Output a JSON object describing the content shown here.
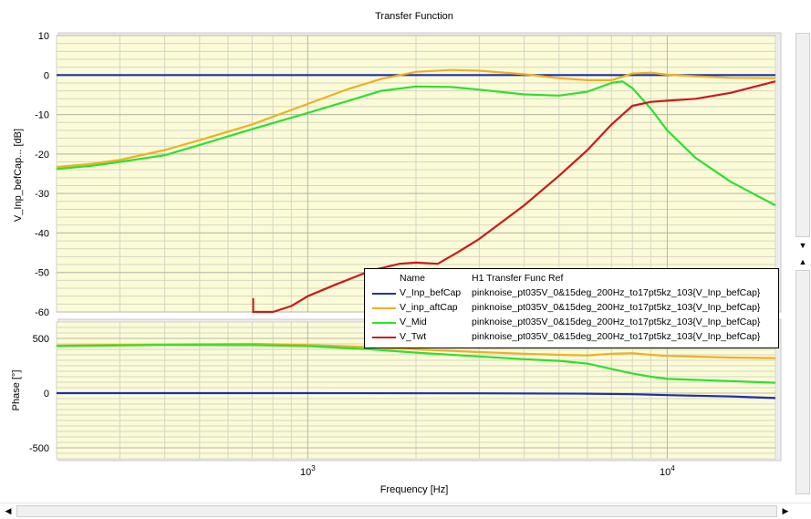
{
  "chart_data": [
    {
      "type": "line",
      "title": "Transfer Function",
      "xlabel": "",
      "ylabel": "V_Inp_befCap... [dB]",
      "xscale": "log",
      "xlim": [
        200,
        20000
      ],
      "ylim": [
        -60,
        10
      ],
      "yticks": [
        10,
        0,
        -10,
        -20,
        -30,
        -40,
        -50,
        -60
      ],
      "grid": true,
      "background": "#fbfbd8",
      "series": [
        {
          "name": "V_Inp_befCap",
          "color": "#1e2fb0",
          "x": [
            200,
            20000
          ],
          "y": [
            0,
            0
          ]
        },
        {
          "name": "V_inp_aftCap",
          "color": "#f0b020",
          "x": [
            200,
            250,
            300,
            400,
            500,
            700,
            1000,
            1300,
            1600,
            2000,
            2500,
            3000,
            4000,
            5000,
            6000,
            7000,
            8000,
            9000,
            10000,
            12000,
            15000,
            20000
          ],
          "y": [
            -23.3,
            -22.5,
            -21.5,
            -19,
            -16.5,
            -12.5,
            -7.3,
            -3.5,
            -1,
            0.8,
            1.3,
            1.1,
            0.2,
            -0.8,
            -1.3,
            -1.3,
            0.4,
            0.6,
            0.1,
            -0.3,
            -0.7,
            -0.8
          ]
        },
        {
          "name": "V_Mid",
          "color": "#2ee02e",
          "x": [
            200,
            250,
            300,
            400,
            500,
            700,
            1000,
            1300,
            1600,
            2000,
            2500,
            3000,
            4000,
            5000,
            6000,
            7000,
            7500,
            8000,
            9000,
            10000,
            12000,
            15000,
            20000
          ],
          "y": [
            -23.8,
            -23,
            -22,
            -20.3,
            -17.7,
            -13.7,
            -9.6,
            -6.5,
            -4,
            -2.9,
            -3,
            -3.7,
            -4.9,
            -5.2,
            -4.2,
            -2,
            -1.6,
            -3.3,
            -8.5,
            -14,
            -21,
            -27,
            -33
          ]
        },
        {
          "name": "V_Twt",
          "color": "#cc1a1a",
          "x": [
            700,
            750,
            800,
            900,
            1000,
            1200,
            1500,
            1800,
            2000,
            2300,
            2600,
            3000,
            4000,
            5000,
            6000,
            7000,
            8000,
            9000,
            10000,
            12000,
            15000,
            20000
          ],
          "y": [
            -61,
            -60.5,
            -60,
            -58.5,
            -56,
            -53,
            -49.5,
            -47.8,
            -47.5,
            -47.8,
            -45,
            -41.5,
            -33,
            -25.5,
            -19,
            -12.5,
            -7.8,
            -6.8,
            -6.5,
            -6,
            -4.5,
            -1.6
          ]
        }
      ],
      "legend": {
        "placement": "bottom-right",
        "name_header": "Name",
        "ref_header": "H1 Transfer Func Ref",
        "entries": [
          {
            "name": "V_Inp_befCap",
            "ref": "pinknoise_pt035V_0&15deg_200Hz_to17pt5kz_103{V_Inp_befCap}",
            "color": "#1e2fb0"
          },
          {
            "name": "V_inp_aftCap",
            "ref": "pinknoise_pt035V_0&15deg_200Hz_to17pt5kz_103{V_Inp_befCap}",
            "color": "#f0b020"
          },
          {
            "name": "V_Mid",
            "ref": "pinknoise_pt035V_0&15deg_200Hz_to17pt5kz_103{V_Inp_befCap}",
            "color": "#2ee02e"
          },
          {
            "name": "V_Twt",
            "ref": "pinknoise_pt035V_0&15deg_200Hz_to17pt5kz_103{V_Inp_befCap}",
            "color": "#cc1a1a"
          }
        ]
      }
    },
    {
      "type": "line",
      "title": "",
      "xlabel": "Frequency [Hz]",
      "ylabel": "Phase [°]",
      "xscale": "log",
      "xlim": [
        200,
        20000
      ],
      "ylim": [
        -600,
        650
      ],
      "yticks": [
        500,
        0,
        -500
      ],
      "xticks": [
        {
          "value": 1000,
          "base": "10",
          "exp": "3"
        },
        {
          "value": 10000,
          "base": "10",
          "exp": "4"
        }
      ],
      "grid": true,
      "background": "#fbfbd8",
      "series": [
        {
          "name": "V_Inp_befCap",
          "color": "#1e2fb0",
          "x": [
            200,
            1000,
            3000,
            6000,
            8000,
            10000,
            15000,
            20000
          ],
          "y": [
            0,
            0,
            -2,
            -5,
            -10,
            -18,
            -30,
            -45
          ]
        },
        {
          "name": "V_inp_aftCap",
          "color": "#f0b020",
          "x": [
            200,
            400,
            700,
            1000,
            1500,
            2000,
            3000,
            4000,
            5000,
            6000,
            7000,
            8000,
            9000,
            10000,
            15000,
            20000
          ],
          "y": [
            435,
            445,
            450,
            440,
            420,
            400,
            375,
            360,
            350,
            345,
            360,
            365,
            350,
            340,
            325,
            320
          ]
        },
        {
          "name": "V_Mid",
          "color": "#2ee02e",
          "x": [
            200,
            400,
            700,
            1000,
            1500,
            2000,
            3000,
            4000,
            5000,
            6000,
            7000,
            8000,
            9000,
            10000,
            15000,
            20000
          ],
          "y": [
            430,
            440,
            438,
            430,
            400,
            370,
            335,
            310,
            295,
            270,
            220,
            180,
            150,
            130,
            110,
            95
          ]
        }
      ]
    }
  ]
}
